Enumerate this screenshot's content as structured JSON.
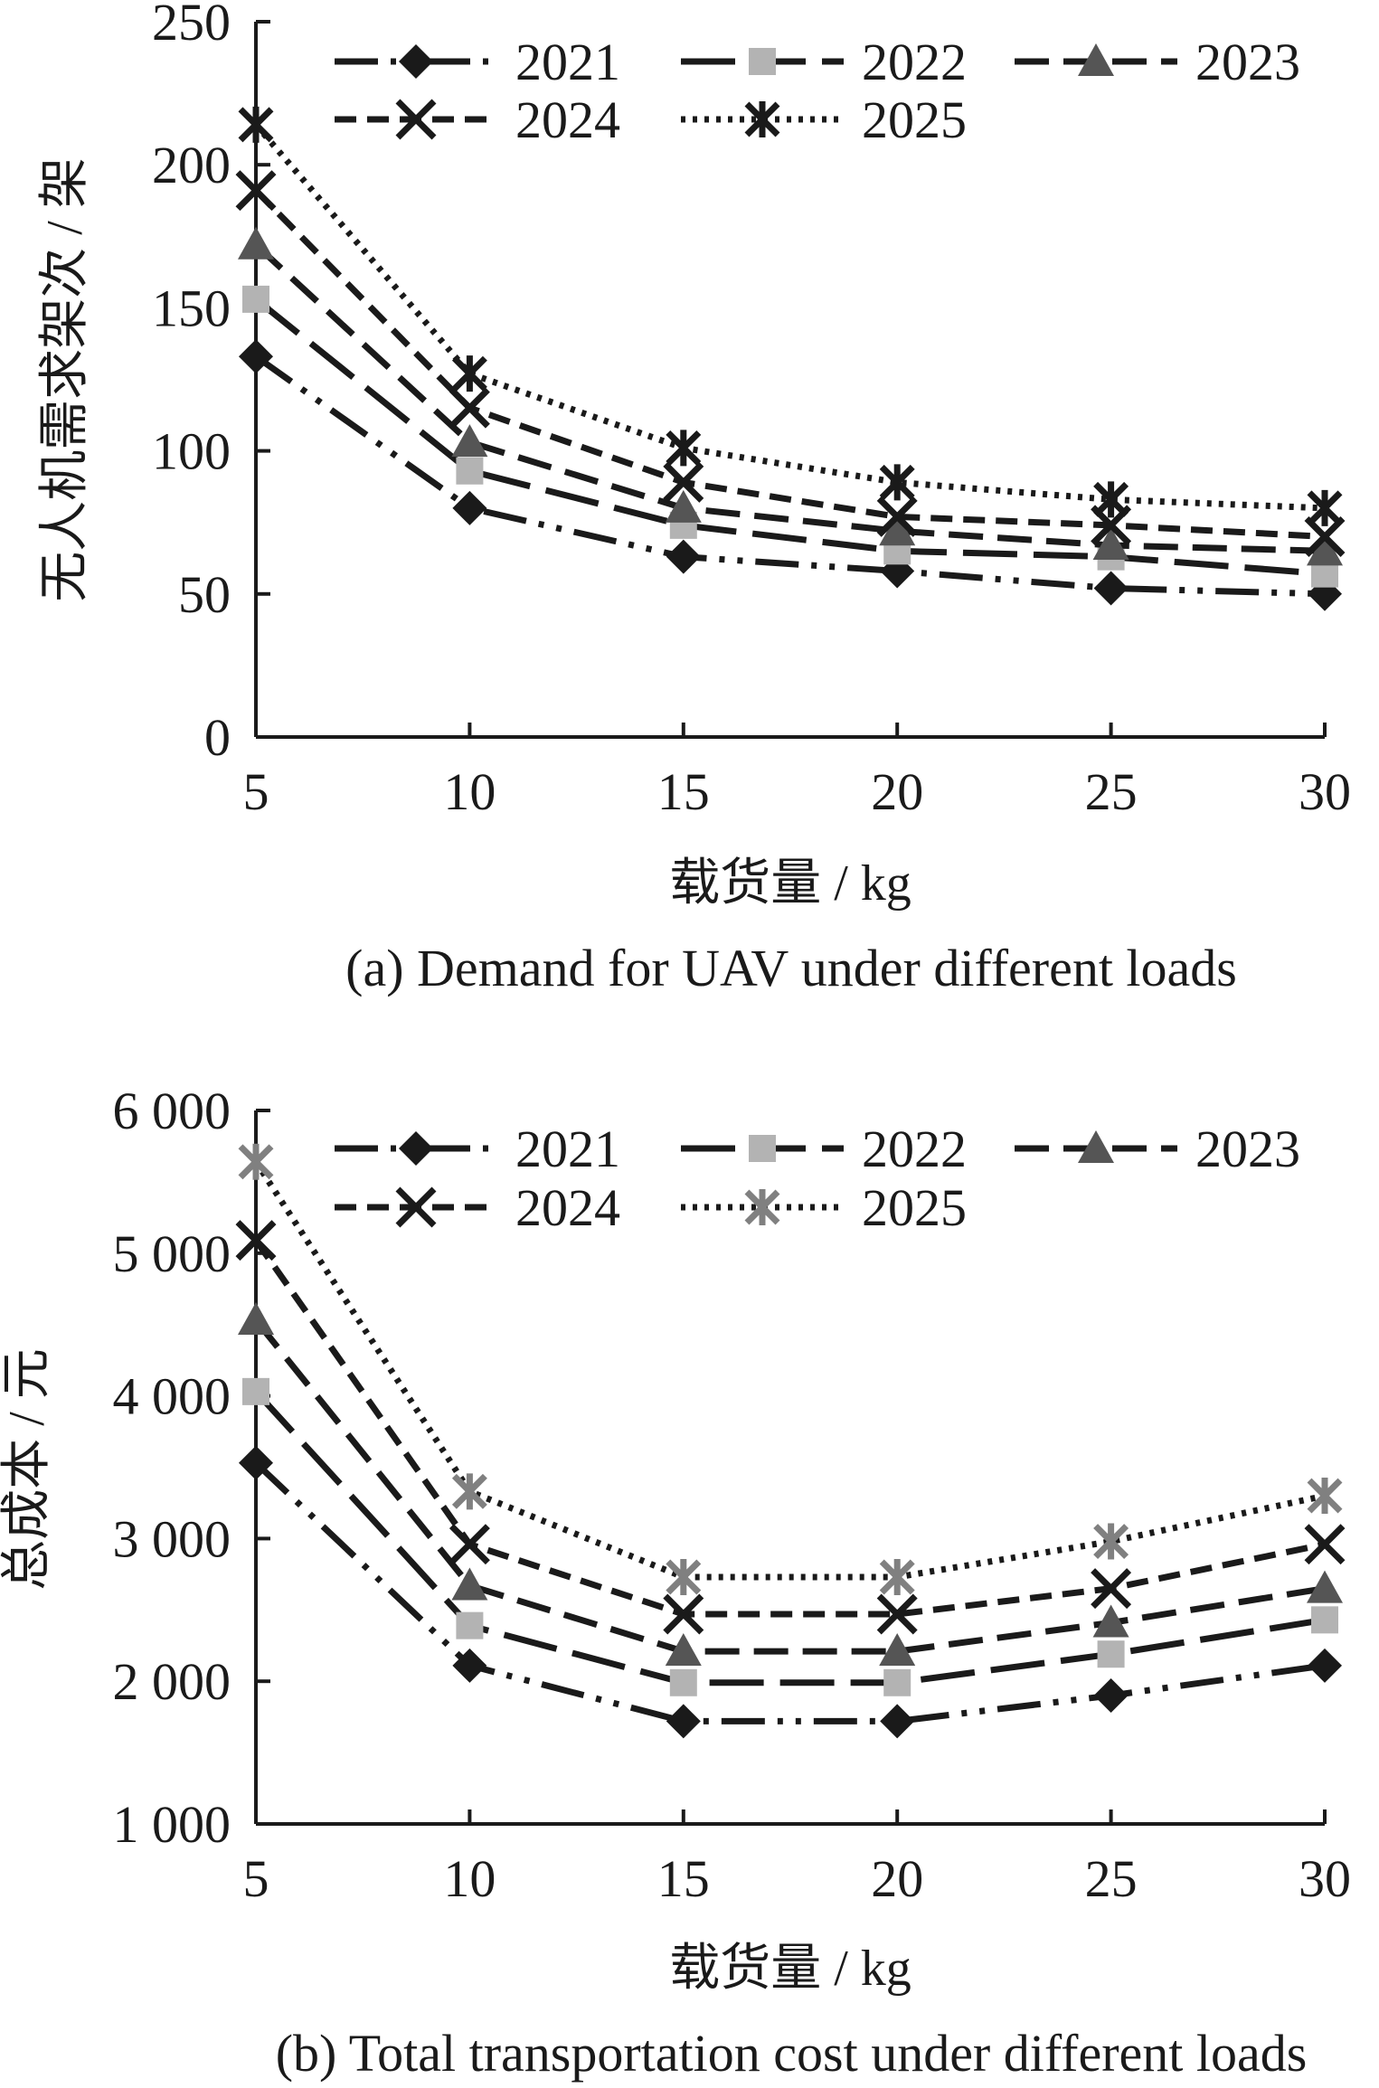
{
  "chart_data": [
    {
      "type": "line",
      "caption": "(a) Demand for UAV under different loads",
      "xlabel": "载货量 / kg",
      "ylabel": "无人机需求架次 / 架",
      "x": [
        5,
        10,
        15,
        20,
        25,
        30
      ],
      "xticks": [
        "5",
        "10",
        "15",
        "20",
        "25",
        "30"
      ],
      "ylim": [
        0,
        250
      ],
      "yticks": [
        "0",
        "50",
        "100",
        "150",
        "200",
        "250"
      ],
      "ytick_values": [
        0,
        50,
        100,
        150,
        200,
        250
      ],
      "legend_position": "top-right",
      "grid": false,
      "series": [
        {
          "name": "2021",
          "values": [
            133,
            80,
            63,
            58,
            52,
            50
          ],
          "marker": "diamond",
          "dash": "dash-dot-dot",
          "color": "#1a1a1a"
        },
        {
          "name": "2022",
          "values": [
            153,
            93,
            74,
            65,
            63,
            57
          ],
          "marker": "square",
          "dash": "long-dash",
          "color": "#b3b3b3"
        },
        {
          "name": "2023",
          "values": [
            172,
            103,
            80,
            72,
            67,
            65
          ],
          "marker": "triangle",
          "dash": "dash",
          "color": "#555555"
        },
        {
          "name": "2024",
          "values": [
            191,
            115,
            89,
            77,
            74,
            70
          ],
          "marker": "x",
          "dash": "short-dash",
          "color": "#1a1a1a"
        },
        {
          "name": "2025",
          "values": [
            214,
            127,
            101,
            89,
            83,
            80
          ],
          "marker": "asterisk",
          "dash": "dotted",
          "color": "#1a1a1a"
        }
      ]
    },
    {
      "type": "line",
      "caption": "(b) Total transportation cost under different loads",
      "xlabel": "载货量 / kg",
      "ylabel": "总成本 / 元",
      "x": [
        5,
        10,
        15,
        20,
        25,
        30
      ],
      "xticks": [
        "5",
        "10",
        "15",
        "20",
        "25",
        "30"
      ],
      "ylim": [
        1000,
        6000
      ],
      "yticks": [
        "1 000",
        "2 000",
        "3 000",
        "4 000",
        "5 000",
        "6 000"
      ],
      "ytick_values": [
        1000,
        2000,
        3000,
        4000,
        5000,
        6000
      ],
      "legend_position": "top-right",
      "grid": false,
      "series": [
        {
          "name": "2021",
          "values": [
            3530,
            2110,
            1720,
            1720,
            1900,
            2110
          ],
          "marker": "diamond",
          "dash": "dash-dot-dot",
          "color": "#1a1a1a"
        },
        {
          "name": "2022",
          "values": [
            4030,
            2390,
            1990,
            1990,
            2190,
            2430
          ],
          "marker": "square",
          "dash": "long-dash",
          "color": "#b3b3b3"
        },
        {
          "name": "2023",
          "values": [
            4530,
            2670,
            2210,
            2210,
            2410,
            2650
          ],
          "marker": "triangle",
          "dash": "dash",
          "color": "#555555"
        },
        {
          "name": "2024",
          "values": [
            5090,
            2960,
            2470,
            2470,
            2650,
            2960
          ],
          "marker": "x",
          "dash": "short-dash",
          "color": "#1a1a1a"
        },
        {
          "name": "2025",
          "values": [
            5640,
            3330,
            2730,
            2730,
            2980,
            3300
          ],
          "marker": "asterisk-gray",
          "dash": "dotted",
          "color": "#808080"
        }
      ]
    }
  ]
}
